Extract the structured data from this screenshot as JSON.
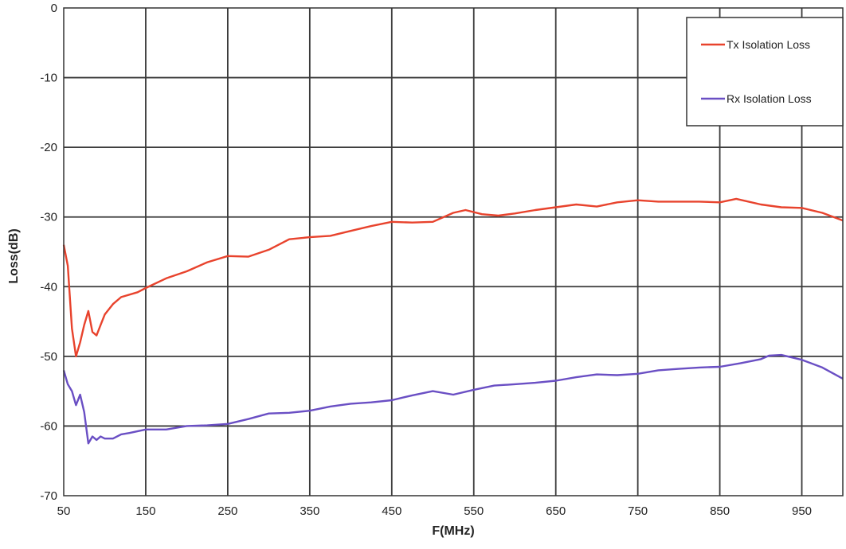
{
  "chart_data": {
    "type": "line",
    "xlabel": "F(MHz)",
    "ylabel": "Loss(dB)",
    "xlim": [
      50,
      1000
    ],
    "ylim": [
      -70,
      0
    ],
    "x_ticks": [
      50,
      150,
      250,
      350,
      450,
      550,
      650,
      750,
      850,
      950
    ],
    "y_ticks": [
      0,
      -10,
      -20,
      -30,
      -40,
      -50,
      -60,
      -70
    ],
    "grid": true,
    "legend_position": "top-right",
    "series": [
      {
        "name": "Tx Isolation Loss",
        "color": "#e8432d",
        "points": [
          [
            50,
            -34
          ],
          [
            55,
            -37
          ],
          [
            60,
            -46
          ],
          [
            65,
            -50
          ],
          [
            70,
            -48
          ],
          [
            75,
            -45.5
          ],
          [
            80,
            -43.5
          ],
          [
            85,
            -46.5
          ],
          [
            90,
            -47
          ],
          [
            95,
            -45.5
          ],
          [
            100,
            -44
          ],
          [
            110,
            -42.5
          ],
          [
            120,
            -41.5
          ],
          [
            140,
            -40.8
          ],
          [
            150,
            -40.2
          ],
          [
            175,
            -38.8
          ],
          [
            200,
            -37.8
          ],
          [
            225,
            -36.5
          ],
          [
            250,
            -35.6
          ],
          [
            275,
            -35.7
          ],
          [
            300,
            -34.7
          ],
          [
            325,
            -33.2
          ],
          [
            350,
            -32.9
          ],
          [
            375,
            -32.7
          ],
          [
            400,
            -32
          ],
          [
            425,
            -31.3
          ],
          [
            450,
            -30.7
          ],
          [
            475,
            -30.8
          ],
          [
            500,
            -30.7
          ],
          [
            525,
            -29.4
          ],
          [
            540,
            -29
          ],
          [
            560,
            -29.6
          ],
          [
            580,
            -29.8
          ],
          [
            600,
            -29.5
          ],
          [
            625,
            -29
          ],
          [
            650,
            -28.6
          ],
          [
            675,
            -28.2
          ],
          [
            700,
            -28.5
          ],
          [
            725,
            -27.9
          ],
          [
            750,
            -27.6
          ],
          [
            775,
            -27.8
          ],
          [
            800,
            -27.8
          ],
          [
            825,
            -27.8
          ],
          [
            850,
            -27.9
          ],
          [
            870,
            -27.4
          ],
          [
            900,
            -28.2
          ],
          [
            925,
            -28.6
          ],
          [
            950,
            -28.7
          ],
          [
            975,
            -29.4
          ],
          [
            1000,
            -30.5
          ]
        ]
      },
      {
        "name": "Rx Isolation Loss",
        "color": "#6a4fc4",
        "points": [
          [
            50,
            -52
          ],
          [
            55,
            -54
          ],
          [
            60,
            -55
          ],
          [
            65,
            -57
          ],
          [
            70,
            -55.5
          ],
          [
            75,
            -58
          ],
          [
            80,
            -62.5
          ],
          [
            85,
            -61.5
          ],
          [
            90,
            -62
          ],
          [
            95,
            -61.5
          ],
          [
            100,
            -61.8
          ],
          [
            110,
            -61.8
          ],
          [
            120,
            -61.2
          ],
          [
            130,
            -61
          ],
          [
            150,
            -60.5
          ],
          [
            175,
            -60.5
          ],
          [
            200,
            -60
          ],
          [
            225,
            -59.9
          ],
          [
            250,
            -59.7
          ],
          [
            275,
            -59
          ],
          [
            300,
            -58.2
          ],
          [
            325,
            -58.1
          ],
          [
            350,
            -57.8
          ],
          [
            375,
            -57.2
          ],
          [
            400,
            -56.8
          ],
          [
            425,
            -56.6
          ],
          [
            450,
            -56.3
          ],
          [
            475,
            -55.6
          ],
          [
            500,
            -55
          ],
          [
            525,
            -55.5
          ],
          [
            550,
            -54.8
          ],
          [
            575,
            -54.2
          ],
          [
            600,
            -54
          ],
          [
            625,
            -53.8
          ],
          [
            650,
            -53.5
          ],
          [
            675,
            -53
          ],
          [
            700,
            -52.6
          ],
          [
            725,
            -52.7
          ],
          [
            750,
            -52.5
          ],
          [
            775,
            -52
          ],
          [
            800,
            -51.8
          ],
          [
            825,
            -51.6
          ],
          [
            850,
            -51.5
          ],
          [
            875,
            -51
          ],
          [
            900,
            -50.4
          ],
          [
            910,
            -49.9
          ],
          [
            925,
            -49.8
          ],
          [
            950,
            -50.5
          ],
          [
            975,
            -51.6
          ],
          [
            1000,
            -53.2
          ]
        ]
      }
    ]
  }
}
